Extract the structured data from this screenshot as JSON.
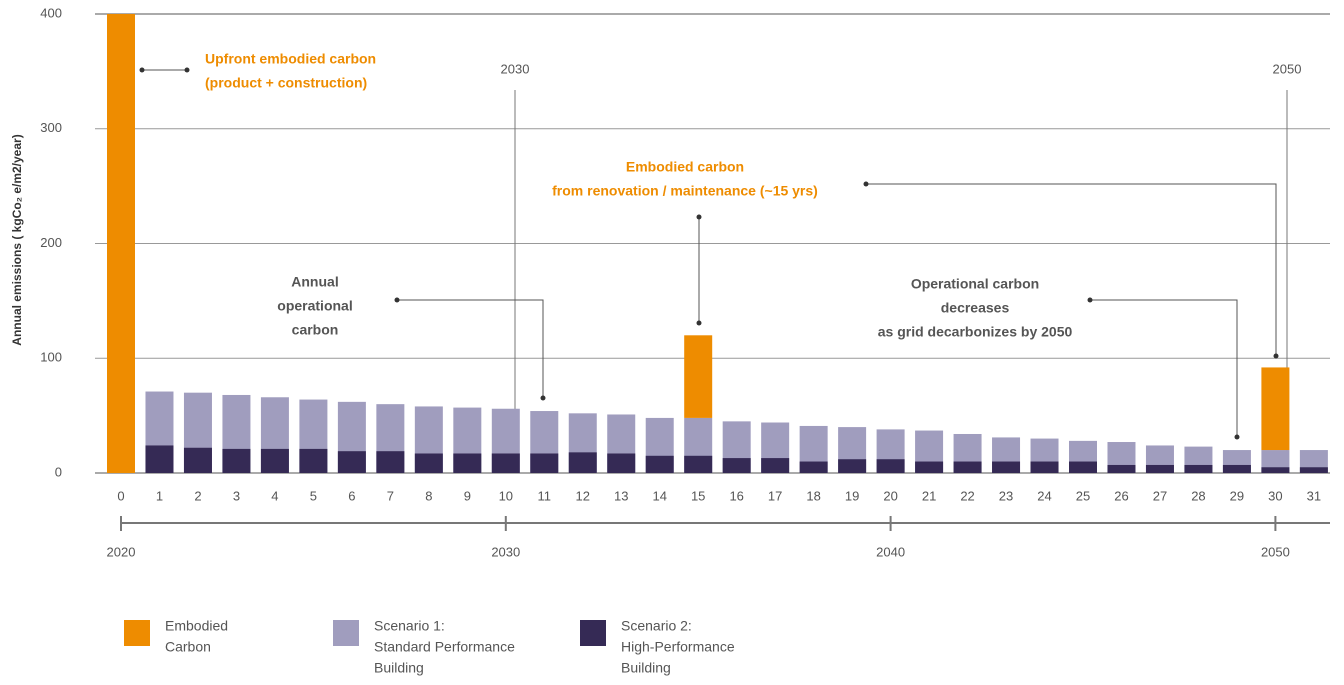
{
  "chart_data": {
    "type": "bar",
    "y_label": "Annual emissions ( kgCo₂ e/m2/year)",
    "categories": [
      "0",
      "1",
      "2",
      "3",
      "4",
      "5",
      "6",
      "7",
      "8",
      "9",
      "10",
      "11",
      "12",
      "13",
      "14",
      "15",
      "16",
      "17",
      "18",
      "19",
      "20",
      "21",
      "22",
      "23",
      "24",
      "25",
      "26",
      "27",
      "28",
      "29",
      "30",
      "31"
    ],
    "series": [
      {
        "name": [
          "Embodied",
          "Carbon"
        ],
        "color": "#EE8C00",
        "stacked_on": 1,
        "values": [
          400,
          null,
          null,
          null,
          null,
          null,
          null,
          null,
          null,
          null,
          null,
          null,
          null,
          null,
          null,
          72,
          null,
          null,
          null,
          null,
          null,
          null,
          null,
          null,
          null,
          null,
          null,
          null,
          null,
          null,
          72,
          null
        ]
      },
      {
        "name": [
          "Scenario 1:",
          "Standard Performance",
          "Building"
        ],
        "color": "#A09DBE",
        "values": [
          null,
          71,
          70,
          68,
          66,
          64,
          62,
          60,
          58,
          57,
          56,
          54,
          52,
          51,
          48,
          48,
          45,
          44,
          41,
          40,
          38,
          37,
          34,
          31,
          30,
          28,
          27,
          24,
          23,
          20,
          20,
          20
        ]
      },
      {
        "name": [
          "Scenario 2:",
          "High-Performance",
          "Building"
        ],
        "color": "#352A55",
        "values": [
          null,
          24,
          22,
          21,
          21,
          21,
          19,
          19,
          17,
          17,
          17,
          17,
          18,
          17,
          15,
          15,
          13,
          13,
          10,
          12,
          12,
          10,
          10,
          10,
          10,
          10,
          7,
          7,
          7,
          7,
          5,
          5
        ]
      }
    ],
    "ylim": [
      0,
      400
    ],
    "yticks": [
      0,
      100,
      200,
      300,
      400
    ],
    "grid": true,
    "year_axis": [
      {
        "value": 0,
        "label": "2020"
      },
      {
        "value": 10,
        "label": "2030"
      },
      {
        "value": 20,
        "label": "2040"
      },
      {
        "value": 30,
        "label": "2050"
      }
    ],
    "reference_labels": [
      "2030",
      "2050"
    ],
    "annotations": [
      {
        "lines": [
          "Upfront embodied carbon",
          "(product + construction)"
        ],
        "color": "#EE8C00"
      },
      {
        "lines": [
          "Embodied carbon",
          "from renovation / maintenance (~15 yrs)"
        ],
        "color": "#EE8C00"
      },
      {
        "lines": [
          "Annual",
          "operational",
          "carbon"
        ],
        "color": "#555555"
      },
      {
        "lines": [
          "Operational carbon",
          "decreases",
          "as grid decarbonizes by 2050"
        ],
        "color": "#555555"
      }
    ]
  }
}
